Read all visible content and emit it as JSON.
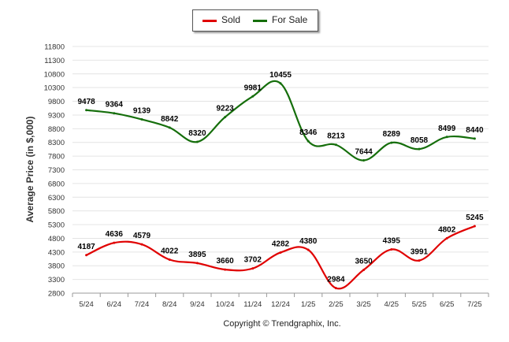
{
  "chart_data": {
    "type": "line",
    "title": "",
    "ylabel": "Average Price (in $,000)",
    "xlabel": "",
    "categories": [
      "5/24",
      "6/24",
      "7/24",
      "8/24",
      "9/24",
      "10/24",
      "11/24",
      "12/24",
      "1/25",
      "2/25",
      "3/25",
      "4/25",
      "5/25",
      "6/25",
      "7/25"
    ],
    "ylim": [
      2800,
      11800
    ],
    "yticks": [
      2800,
      3300,
      3800,
      4300,
      4800,
      5300,
      5800,
      6300,
      6800,
      7300,
      7800,
      8300,
      8800,
      9300,
      9800,
      10300,
      10800,
      11300,
      11800
    ],
    "grid": true,
    "legend_position": "top-center",
    "series": [
      {
        "name": "Sold",
        "color": "#e00000",
        "values": [
          4187,
          4636,
          4579,
          4022,
          3895,
          3660,
          3702,
          4282,
          4380,
          2984,
          3650,
          4395,
          3991,
          4802,
          5245
        ]
      },
      {
        "name": "For Sale",
        "color": "#156e0b",
        "values": [
          9478,
          9364,
          9139,
          8842,
          8320,
          9223,
          9981,
          10455,
          8346,
          8213,
          7644,
          8289,
          8058,
          8499,
          8440
        ]
      }
    ],
    "footer": "Copyright © Trendgraphix, Inc."
  }
}
